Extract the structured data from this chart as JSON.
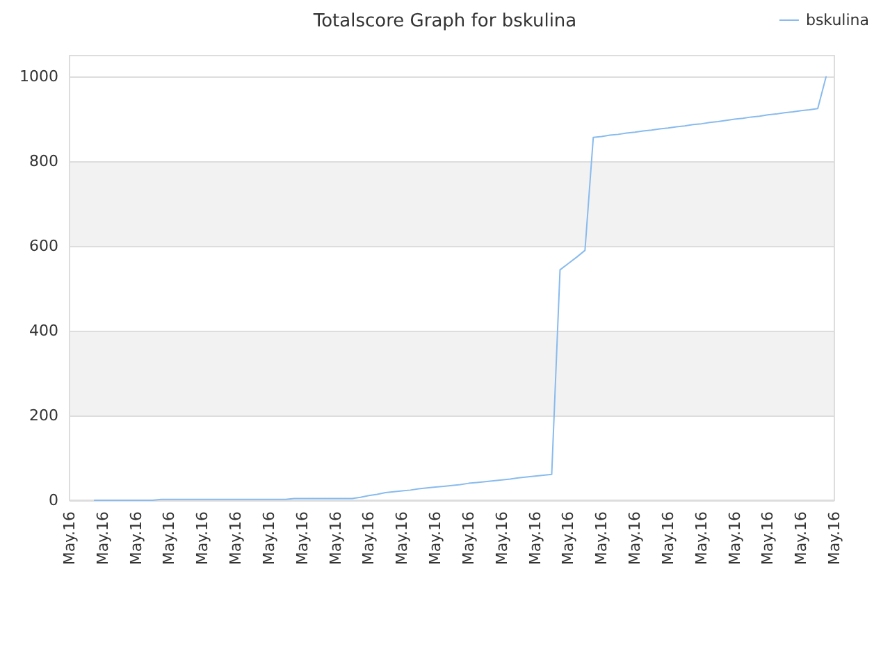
{
  "chart_data": {
    "type": "line",
    "title": "Totalscore Graph for bskulina",
    "categories": [
      "May.16",
      null,
      null,
      null,
      "May.16",
      null,
      null,
      null,
      "May.16",
      null,
      null,
      null,
      "May.16",
      null,
      null,
      null,
      "May.16",
      null,
      null,
      null,
      "May.16",
      null,
      null,
      null,
      "May.16",
      null,
      null,
      null,
      "May.16",
      null,
      null,
      null,
      "May.16",
      null,
      null,
      null,
      "May.16",
      null,
      null,
      null,
      "May.16",
      null,
      null,
      null,
      "May.16",
      null,
      null,
      null,
      "May.16",
      null,
      null,
      null,
      "May.16",
      null,
      null,
      null,
      "May.16",
      null,
      null,
      null,
      "May.16",
      null,
      null,
      null,
      "May.16",
      null,
      null,
      null,
      "May.16",
      null,
      null,
      null,
      "May.16",
      null,
      null,
      null,
      "May.16",
      null,
      null,
      null,
      "May.16",
      null,
      null,
      null,
      "May.16",
      null,
      null,
      null,
      "May.16",
      null,
      null,
      null,
      "May.16"
    ],
    "series": [
      {
        "name": "bskulina",
        "color": "#88bbee",
        "values": [
          null,
          null,
          null,
          0,
          0,
          0,
          0,
          0,
          0,
          0,
          0,
          2,
          2,
          2,
          2,
          2,
          2,
          2,
          2,
          2,
          2,
          2,
          2,
          2,
          2,
          2,
          2,
          4,
          4,
          4,
          4,
          4,
          4,
          4,
          4,
          7,
          11,
          14,
          18,
          20,
          22,
          24,
          27,
          29,
          31,
          33,
          35,
          37,
          40,
          42,
          44,
          46,
          48,
          50,
          53,
          55,
          57,
          59,
          61,
          544,
          559,
          574,
          590,
          857,
          859,
          862,
          864,
          867,
          869,
          872,
          874,
          877,
          879,
          882,
          884,
          887,
          889,
          892,
          894,
          897,
          900,
          902,
          905,
          907,
          910,
          912,
          915,
          917,
          920,
          922,
          925,
          1000,
          null
        ]
      }
    ],
    "ylim": [
      0,
      1050
    ],
    "yticks": [
      0,
      200,
      400,
      600,
      800,
      1000
    ],
    "grid": "y",
    "legend": "top right",
    "marker": "none",
    "line_style": "solid"
  }
}
